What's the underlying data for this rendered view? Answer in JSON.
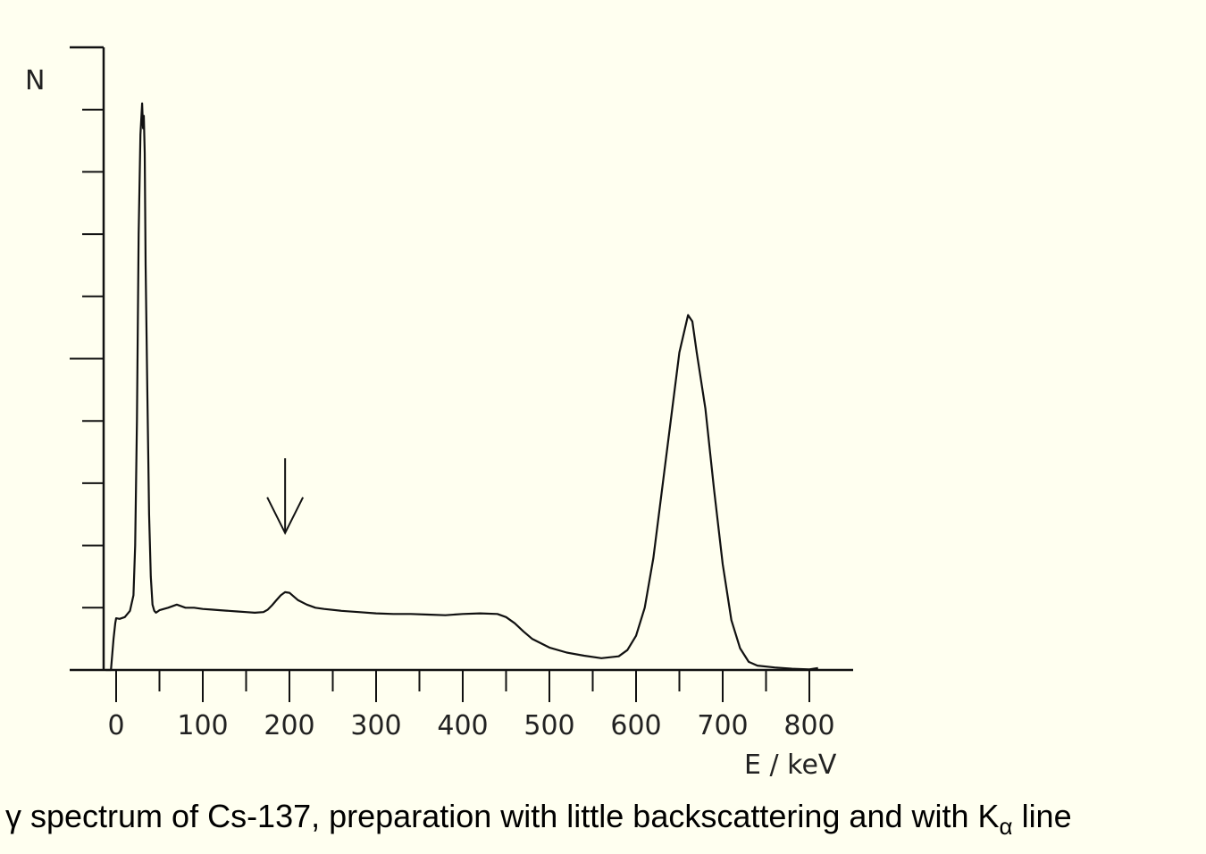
{
  "chart_data": {
    "type": "line",
    "title": "",
    "xlabel": "E / keV",
    "ylabel": "N",
    "xlim": [
      -25,
      850
    ],
    "ylim": [
      0,
      10
    ],
    "xticks": [
      0,
      100,
      200,
      300,
      400,
      500,
      600,
      700,
      800
    ],
    "xtick_labels": [
      "0",
      "100",
      "200",
      "300",
      "400",
      "500",
      "600",
      "700",
      "800"
    ],
    "yticks": [
      1,
      2,
      3,
      4,
      5,
      6,
      7,
      8,
      9,
      10
    ],
    "grid": false,
    "annotations": [
      {
        "type": "arrow",
        "x": 195,
        "y_from": 3.4,
        "y_to": 2.2
      }
    ],
    "series": [
      {
        "name": "",
        "x": [
          -12,
          -6,
          -3,
          -1,
          0,
          4,
          10,
          16,
          20,
          22,
          24,
          26,
          28,
          30,
          31,
          32,
          33,
          34,
          36,
          38,
          40,
          42,
          44,
          46,
          48,
          50,
          60,
          70,
          80,
          90,
          100,
          110,
          120,
          130,
          140,
          150,
          160,
          170,
          175,
          180,
          185,
          190,
          195,
          200,
          205,
          210,
          220,
          230,
          240,
          260,
          280,
          300,
          320,
          340,
          360,
          380,
          400,
          420,
          440,
          450,
          460,
          470,
          480,
          500,
          520,
          540,
          560,
          580,
          590,
          600,
          610,
          620,
          630,
          640,
          650,
          660,
          665,
          670,
          680,
          690,
          700,
          710,
          720,
          730,
          740,
          760,
          780,
          800,
          810
        ],
        "values": [
          0,
          0,
          0.5,
          0.75,
          0.83,
          0.82,
          0.85,
          0.95,
          1.2,
          2.0,
          4.0,
          7.0,
          8.6,
          9.1,
          8.7,
          8.9,
          8.3,
          6.5,
          4.5,
          2.5,
          1.5,
          1.05,
          0.95,
          0.92,
          0.94,
          0.96,
          1.0,
          1.05,
          1.0,
          1.0,
          0.98,
          0.97,
          0.96,
          0.95,
          0.94,
          0.93,
          0.92,
          0.93,
          0.97,
          1.04,
          1.12,
          1.2,
          1.25,
          1.24,
          1.18,
          1.12,
          1.05,
          1.0,
          0.98,
          0.95,
          0.93,
          0.91,
          0.9,
          0.9,
          0.89,
          0.88,
          0.9,
          0.91,
          0.9,
          0.85,
          0.75,
          0.62,
          0.5,
          0.36,
          0.28,
          0.23,
          0.19,
          0.22,
          0.32,
          0.55,
          1.0,
          1.8,
          2.9,
          4.0,
          5.1,
          5.7,
          5.6,
          5.1,
          4.2,
          2.9,
          1.7,
          0.8,
          0.35,
          0.13,
          0.07,
          0.04,
          0.02,
          0.01,
          0.03
        ]
      }
    ]
  },
  "caption": {
    "text": "γ spectrum of Cs-137, preparation with little backscattering and with K",
    "subscript": "α",
    "suffix": " line"
  }
}
